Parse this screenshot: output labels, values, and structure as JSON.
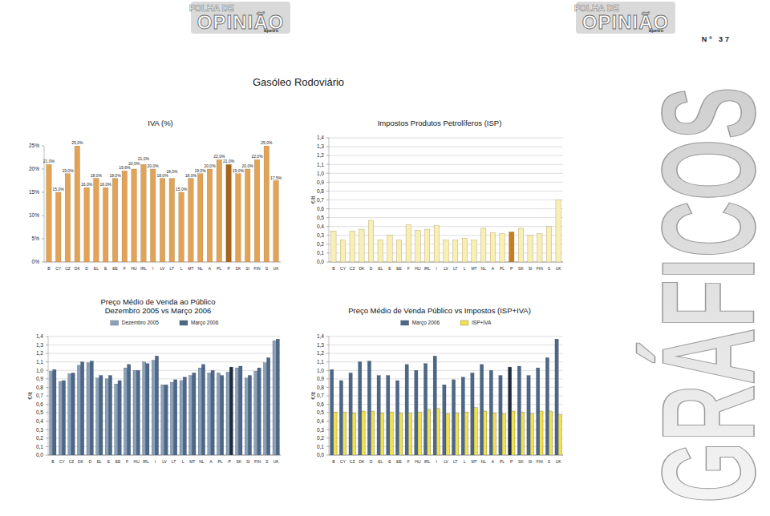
{
  "page": {
    "logo_line1": "FOLHA DE",
    "logo_line2": "OPINIÃO",
    "logo_sub": "apetro",
    "issue": "Nº 37",
    "title": "Gasóleo Rodoviário",
    "side_title": "GRÁFICOS"
  },
  "chart_data": [
    {
      "type": "bar",
      "title": "IVA (%)",
      "categories": [
        "B",
        "CY",
        "CZ",
        "DK",
        "D",
        "EL",
        "E",
        "EE",
        "F",
        "HU",
        "IRL",
        "I",
        "LV",
        "LT",
        "L",
        "MT",
        "NL",
        "A",
        "PL",
        "P",
        "SK",
        "SI",
        "FIN",
        "S",
        "UK"
      ],
      "values": [
        21.0,
        15.0,
        19.0,
        25.0,
        16.0,
        18.0,
        16.0,
        18.0,
        19.6,
        20.0,
        21.0,
        20.0,
        18.0,
        18.0,
        15.0,
        18.0,
        19.0,
        20.0,
        22.0,
        21.0,
        19.0,
        20.0,
        22.0,
        25.0,
        17.5
      ],
      "value_labels": [
        "21,0%",
        "15,0%",
        "19,0%",
        "25,0%",
        "16,0%",
        "18,0%",
        "16,0%",
        "18,0%",
        "19,6%",
        "20,0%",
        "21,0%",
        "20,0%",
        "18,0%",
        "18,0%",
        "15,0%",
        "18,0%",
        "19,0%",
        "20,0%",
        "22,0%",
        "21,0%",
        "19,0%",
        "20,0%",
        "22,0%",
        "25,0%",
        "17,5%"
      ],
      "data_labels": true,
      "colors": [
        "#e2a257",
        "#e2a257",
        "#e2a257",
        "#e2a257",
        "#e2a257",
        "#e2a257",
        "#e2a257",
        "#e2a257",
        "#e2a257",
        "#e2a257",
        "#e2a257",
        "#e2a257",
        "#e2a257",
        "#e2a257",
        "#e2a257",
        "#e2a257",
        "#e2a257",
        "#e2a257",
        "#e2a257",
        "#a8641c",
        "#e2a257",
        "#e2a257",
        "#e2a257",
        "#e2a257",
        "#e2a257"
      ],
      "ylim": [
        0,
        25
      ],
      "yticks": [
        {
          "value": 0,
          "label": "0%"
        },
        {
          "value": 5,
          "label": "5%"
        },
        {
          "value": 10,
          "label": "10%"
        },
        {
          "value": 15,
          "label": "15%"
        },
        {
          "value": 20,
          "label": "20%"
        },
        {
          "value": 25,
          "label": "25%"
        }
      ],
      "grid": false
    },
    {
      "type": "bar",
      "title": "Impostos Produtos Petrolíferos (ISP)",
      "y_label": "€/lt",
      "categories": [
        "B",
        "CY",
        "CZ",
        "DK",
        "D",
        "EL",
        "E",
        "EE",
        "F",
        "HU",
        "IRL",
        "I",
        "LV",
        "LT",
        "L",
        "MT",
        "NL",
        "A",
        "PL",
        "P",
        "SK",
        "SI",
        "FIN",
        "S",
        "UK"
      ],
      "values": [
        0.35,
        0.25,
        0.35,
        0.37,
        0.47,
        0.25,
        0.3,
        0.25,
        0.42,
        0.36,
        0.37,
        0.41,
        0.25,
        0.25,
        0.27,
        0.25,
        0.38,
        0.33,
        0.32,
        0.34,
        0.38,
        0.3,
        0.32,
        0.4,
        0.7
      ],
      "colors": [
        "#f7efb4",
        "#f7efb4",
        "#f7efb4",
        "#f7efb4",
        "#f7efb4",
        "#f7efb4",
        "#f7efb4",
        "#f7efb4",
        "#f7efb4",
        "#f7efb4",
        "#f7efb4",
        "#f7efb4",
        "#f7efb4",
        "#f7efb4",
        "#f7efb4",
        "#f7efb4",
        "#f7efb4",
        "#f7efb4",
        "#f7efb4",
        "#c57f22",
        "#f7efb4",
        "#f7efb4",
        "#f7efb4",
        "#f7efb4",
        "#f7efb4"
      ],
      "ylim": [
        0,
        1.4
      ],
      "yticks": [
        {
          "value": 0,
          "label": "0,0"
        },
        {
          "value": 0.1,
          "label": "0,1"
        },
        {
          "value": 0.2,
          "label": "0,2"
        },
        {
          "value": 0.3,
          "label": "0,3"
        },
        {
          "value": 0.4,
          "label": "0,4"
        },
        {
          "value": 0.5,
          "label": "0,5"
        },
        {
          "value": 0.6,
          "label": "0,6"
        },
        {
          "value": 0.7,
          "label": "0,7"
        },
        {
          "value": 0.8,
          "label": "0,8"
        },
        {
          "value": 0.9,
          "label": "0,9"
        },
        {
          "value": 1,
          "label": "1,0"
        },
        {
          "value": 1.1,
          "label": "1,1"
        },
        {
          "value": 1.2,
          "label": "1,2"
        },
        {
          "value": 1.3,
          "label": "1,3"
        },
        {
          "value": 1.4,
          "label": "1,4"
        }
      ],
      "grid": true
    },
    {
      "type": "bar",
      "title": "Preço Médio de Venda ao Público",
      "subtitle": "Dezembro 2005 vs Março 2006",
      "y_label": "€/lt",
      "categories": [
        "B",
        "CY",
        "CZ",
        "DK",
        "D",
        "EL",
        "E",
        "EE",
        "F",
        "HU",
        "IRL",
        "I",
        "LV",
        "LT",
        "L",
        "MT",
        "NL",
        "A",
        "PL",
        "P",
        "SK",
        "SI",
        "FIN",
        "S",
        "UK"
      ],
      "series": [
        {
          "name": "Dezembro 2005",
          "color": "#8aa0bb",
          "values": [
            0.99,
            0.87,
            0.96,
            1.06,
            1.09,
            0.91,
            0.9,
            0.84,
            1.03,
            1.0,
            1.1,
            1.12,
            0.83,
            0.86,
            0.88,
            0.94,
            1.03,
            0.97,
            0.97,
            0.98,
            1.03,
            0.91,
            0.99,
            1.09,
            1.35
          ]
        },
        {
          "name": "Março 2006",
          "color": "#4c6787",
          "colors": [
            "#4c6787",
            "#4c6787",
            "#4c6787",
            "#4c6787",
            "#4c6787",
            "#4c6787",
            "#4c6787",
            "#4c6787",
            "#4c6787",
            "#4c6787",
            "#4c6787",
            "#4c6787",
            "#4c6787",
            "#4c6787",
            "#4c6787",
            "#4c6787",
            "#4c6787",
            "#4c6787",
            "#4c6787",
            "#1e2c3d",
            "#4c6787",
            "#4c6787",
            "#4c6787",
            "#4c6787",
            "#4c6787"
          ],
          "values": [
            1.01,
            0.88,
            0.97,
            1.1,
            1.11,
            0.94,
            0.94,
            0.88,
            1.07,
            1.0,
            1.08,
            1.17,
            0.83,
            0.89,
            0.92,
            0.97,
            1.07,
            1.0,
            0.94,
            1.04,
            1.05,
            0.94,
            1.03,
            1.15,
            1.37
          ]
        }
      ],
      "legend": "top",
      "ylim": [
        0,
        1.4
      ],
      "yticks": [
        {
          "value": 0,
          "label": "0,0"
        },
        {
          "value": 0.1,
          "label": "0,1"
        },
        {
          "value": 0.2,
          "label": "0,2"
        },
        {
          "value": 0.3,
          "label": "0,3"
        },
        {
          "value": 0.4,
          "label": "0,4"
        },
        {
          "value": 0.5,
          "label": "0,5"
        },
        {
          "value": 0.6,
          "label": "0,6"
        },
        {
          "value": 0.7,
          "label": "0,7"
        },
        {
          "value": 0.8,
          "label": "0,8"
        },
        {
          "value": 0.9,
          "label": "0,9"
        },
        {
          "value": 1,
          "label": "1,0"
        },
        {
          "value": 1.1,
          "label": "1,1"
        },
        {
          "value": 1.2,
          "label": "1,2"
        },
        {
          "value": 1.3,
          "label": "1,3"
        },
        {
          "value": 1.4,
          "label": "1,4"
        }
      ],
      "grid": true
    },
    {
      "type": "bar",
      "title": "Preço Médio de Venda Público vs Impostos (ISP+IVA)",
      "y_label": "€/lt",
      "categories": [
        "B",
        "CY",
        "CZ",
        "DK",
        "D",
        "EL",
        "E",
        "EE",
        "F",
        "HU",
        "IRL",
        "I",
        "LV",
        "LT",
        "L",
        "MT",
        "NL",
        "A",
        "PL",
        "P",
        "SK",
        "SI",
        "FIN",
        "S",
        "UK"
      ],
      "series": [
        {
          "name": "Março 2006",
          "color": "#4c6787",
          "colors": [
            "#4c6787",
            "#4c6787",
            "#4c6787",
            "#4c6787",
            "#4c6787",
            "#4c6787",
            "#4c6787",
            "#4c6787",
            "#4c6787",
            "#4c6787",
            "#4c6787",
            "#4c6787",
            "#4c6787",
            "#4c6787",
            "#4c6787",
            "#4c6787",
            "#4c6787",
            "#4c6787",
            "#4c6787",
            "#1e2c3d",
            "#4c6787",
            "#4c6787",
            "#4c6787",
            "#4c6787",
            "#4c6787"
          ],
          "values": [
            1.01,
            0.88,
            0.97,
            1.1,
            1.11,
            0.94,
            0.94,
            0.88,
            1.07,
            1.0,
            1.08,
            1.17,
            0.83,
            0.89,
            0.92,
            0.97,
            1.07,
            1.0,
            0.94,
            1.04,
            1.05,
            0.94,
            1.03,
            1.15,
            1.37
          ]
        },
        {
          "name": "ISP+IVA",
          "color": "#f3e04f",
          "values": [
            0.51,
            0.51,
            0.5,
            0.52,
            0.52,
            0.5,
            0.51,
            0.5,
            0.5,
            0.51,
            0.54,
            0.55,
            0.49,
            0.5,
            0.51,
            0.56,
            0.52,
            0.5,
            0.49,
            0.52,
            0.51,
            0.49,
            0.52,
            0.52,
            0.48
          ]
        }
      ],
      "legend": "top",
      "ylim": [
        0,
        1.4
      ],
      "yticks": [
        {
          "value": 0,
          "label": "0,0"
        },
        {
          "value": 0.1,
          "label": "0,1"
        },
        {
          "value": 0.2,
          "label": "0,2"
        },
        {
          "value": 0.3,
          "label": "0,3"
        },
        {
          "value": 0.4,
          "label": "0,4"
        },
        {
          "value": 0.5,
          "label": "0,5"
        },
        {
          "value": 0.6,
          "label": "0,6"
        },
        {
          "value": 0.7,
          "label": "0,7"
        },
        {
          "value": 0.8,
          "label": "0,8"
        },
        {
          "value": 0.9,
          "label": "0,9"
        },
        {
          "value": 1,
          "label": "1,0"
        },
        {
          "value": 1.1,
          "label": "1,1"
        },
        {
          "value": 1.2,
          "label": "1,2"
        },
        {
          "value": 1.3,
          "label": "1,3"
        },
        {
          "value": 1.4,
          "label": "1,4"
        }
      ],
      "grid": true
    }
  ]
}
